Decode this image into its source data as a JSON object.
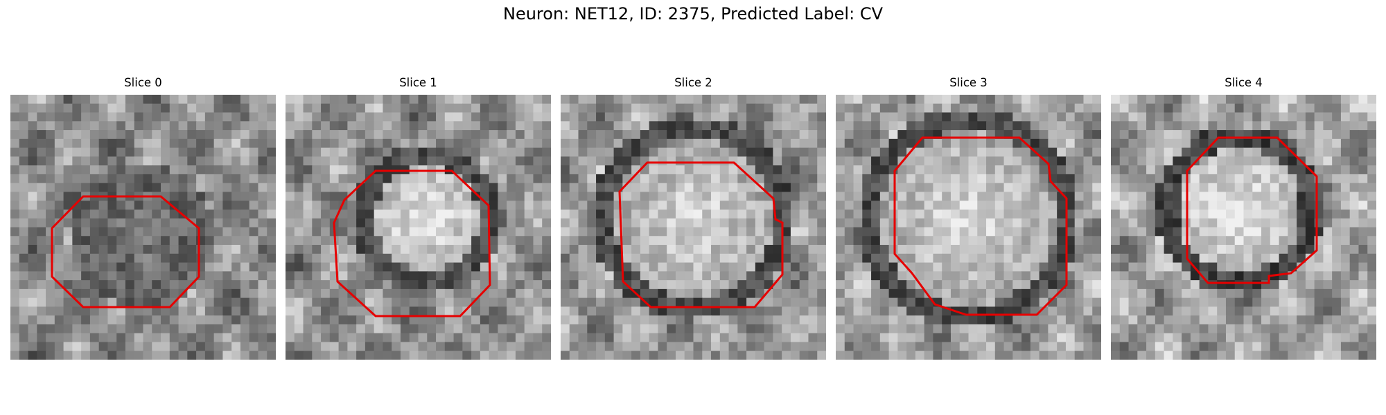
{
  "figure": {
    "title": "Neuron: NET12, ID: 2375, Predicted Label: CV"
  },
  "colors": {
    "contour": "#e60000",
    "background": "#ffffff"
  },
  "panels": [
    {
      "title": "Slice 0"
    },
    {
      "title": "Slice 1"
    },
    {
      "title": "Slice 2"
    },
    {
      "title": "Slice 3"
    },
    {
      "title": "Slice 4"
    }
  ]
}
